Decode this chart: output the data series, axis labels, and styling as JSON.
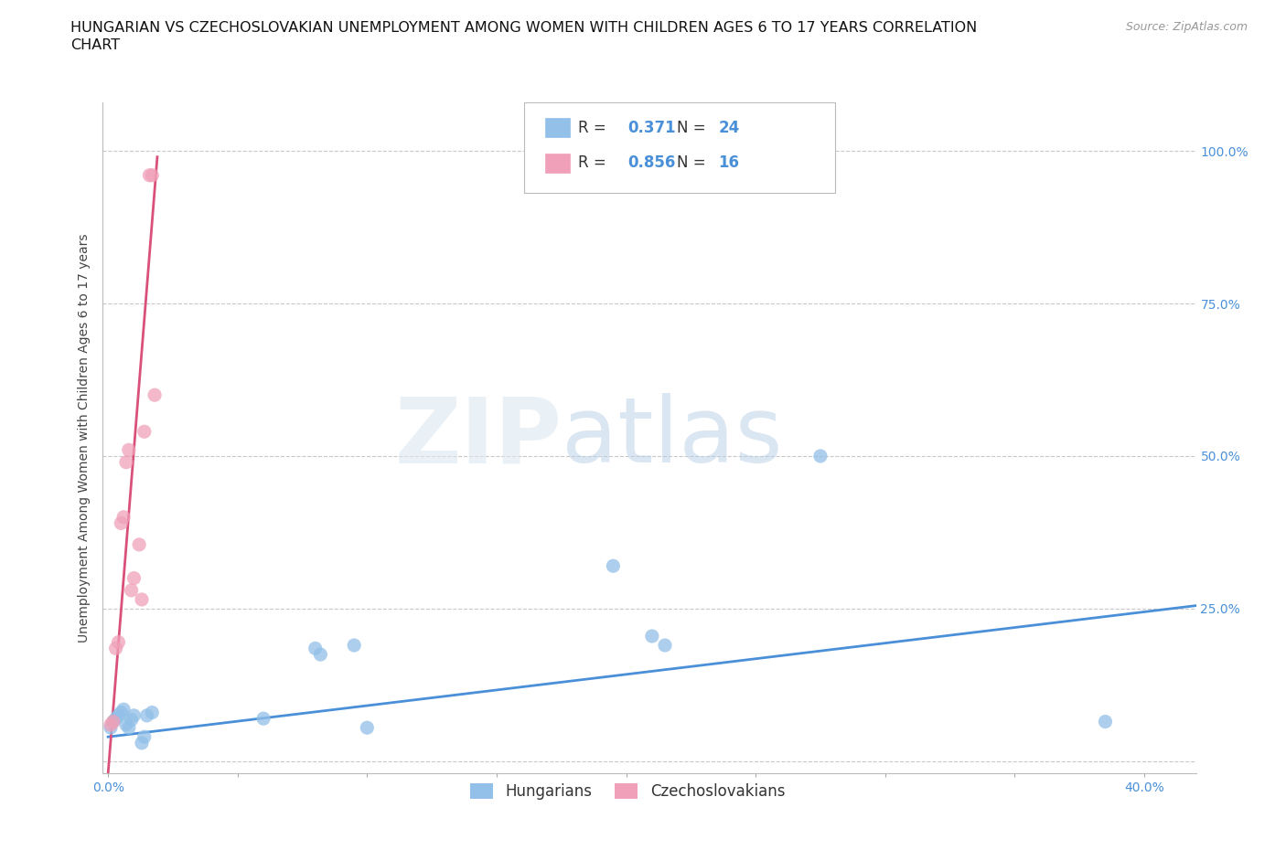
{
  "title_line1": "HUNGARIAN VS CZECHOSLOVAKIAN UNEMPLOYMENT AMONG WOMEN WITH CHILDREN AGES 6 TO 17 YEARS CORRELATION",
  "title_line2": "CHART",
  "source": "Source: ZipAtlas.com",
  "ylabel": "Unemployment Among Women with Children Ages 6 to 17 years",
  "xlim": [
    -0.002,
    0.42
  ],
  "ylim": [
    -0.02,
    1.08
  ],
  "bg_color": "#ffffff",
  "grid_color": "#c8c8c8",
  "watermark_zip": "ZIP",
  "watermark_atlas": "atlas",
  "hun_color": "#92c0e8",
  "czech_color": "#f0a0b8",
  "hun_line_color": "#4a90d9",
  "czech_line_color": "#d9507a",
  "hun_r": "0.371",
  "hun_n": "24",
  "czech_r": "0.856",
  "czech_n": "16",
  "hun_x": [
    0.001,
    0.002,
    0.003,
    0.004,
    0.005,
    0.006,
    0.007,
    0.008,
    0.009,
    0.01,
    0.013,
    0.014,
    0.015,
    0.017,
    0.06,
    0.08,
    0.082,
    0.095,
    0.1,
    0.195,
    0.21,
    0.215,
    0.275,
    0.385
  ],
  "hun_y": [
    0.055,
    0.065,
    0.07,
    0.075,
    0.08,
    0.085,
    0.06,
    0.055,
    0.068,
    0.075,
    0.03,
    0.04,
    0.075,
    0.08,
    0.07,
    0.185,
    0.175,
    0.19,
    0.055,
    0.32,
    0.205,
    0.19,
    0.5,
    0.065
  ],
  "czech_x": [
    0.001,
    0.002,
    0.003,
    0.004,
    0.005,
    0.006,
    0.007,
    0.008,
    0.009,
    0.01,
    0.012,
    0.013,
    0.014,
    0.016,
    0.017,
    0.018
  ],
  "czech_y": [
    0.06,
    0.065,
    0.185,
    0.195,
    0.39,
    0.4,
    0.49,
    0.51,
    0.28,
    0.3,
    0.355,
    0.265,
    0.54,
    0.96,
    0.96,
    0.6
  ],
  "hun_line_x0": 0.0,
  "hun_line_x1": 0.42,
  "hun_line_y0": 0.04,
  "hun_line_y1": 0.255,
  "czech_line_x0": 0.0,
  "czech_line_x1": 0.019,
  "czech_line_y0": -0.02,
  "czech_line_y1": 0.99,
  "marker_size": 120,
  "marker_alpha": 0.75,
  "title_fontsize": 11.5,
  "tick_fontsize": 10,
  "label_fontsize": 10,
  "source_fontsize": 9,
  "legend_fontsize": 12
}
